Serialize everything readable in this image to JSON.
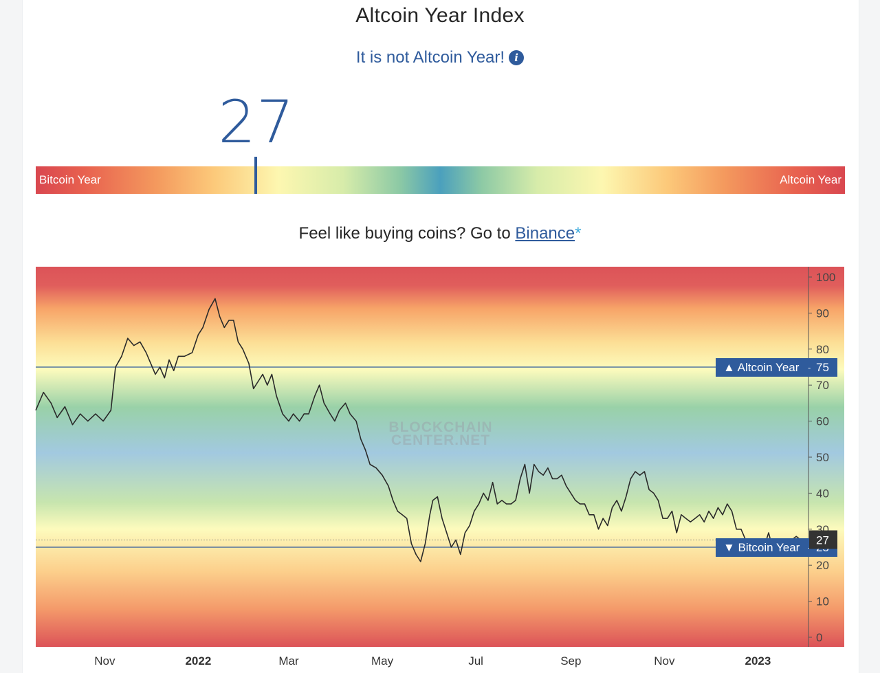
{
  "header": {
    "title": "Altcoin Year Index",
    "status_text": "It is not Altcoin Year!",
    "info_icon": "info-icon",
    "current_value": "27"
  },
  "scale": {
    "left_label": "Bitcoin Year",
    "right_label": "Altcoin Year",
    "value": 27
  },
  "promo": {
    "prefix": "Feel like buying coins? Go to ",
    "link_text": "Binance",
    "suffix": "*"
  },
  "colors": {
    "accent": "#2f5b9c",
    "line": "#2a2a2a",
    "red": "#dc5358",
    "orange": "#f7a468",
    "yellow": "#fdfbbd",
    "green": "#99d1a8",
    "blue": "#a2c9e0"
  },
  "chart_data": {
    "type": "line",
    "title": "",
    "ylim": [
      0,
      100
    ],
    "yticks": [
      0,
      10,
      20,
      30,
      40,
      50,
      60,
      70,
      80,
      90,
      100
    ],
    "x_labels": [
      {
        "date": "2021-11-01",
        "label": "Nov",
        "bold": false
      },
      {
        "date": "2022-01-01",
        "label": "2022",
        "bold": true
      },
      {
        "date": "2022-03-01",
        "label": "Mar",
        "bold": false
      },
      {
        "date": "2022-05-01",
        "label": "May",
        "bold": false
      },
      {
        "date": "2022-07-01",
        "label": "Jul",
        "bold": false
      },
      {
        "date": "2022-09-01",
        "label": "Sep",
        "bold": false
      },
      {
        "date": "2022-11-01",
        "label": "Nov",
        "bold": false
      },
      {
        "date": "2023-01-01",
        "label": "2023",
        "bold": true
      }
    ],
    "x_range": [
      "2021-09-17",
      "2023-02-03"
    ],
    "thresholds": [
      {
        "label": "▲ Altcoin Year",
        "value": 75
      },
      {
        "label": "▼ Bitcoin Year",
        "value": 25
      }
    ],
    "current": {
      "label": "27",
      "value": 27
    },
    "watermark": [
      "BLOCKCHAIN",
      "CENTER.NET"
    ],
    "series": [
      {
        "points": [
          [
            "2021-09-17",
            63
          ],
          [
            "2021-09-22",
            68
          ],
          [
            "2021-09-27",
            65
          ],
          [
            "2021-10-01",
            61
          ],
          [
            "2021-10-06",
            64
          ],
          [
            "2021-10-11",
            59
          ],
          [
            "2021-10-16",
            62
          ],
          [
            "2021-10-21",
            60
          ],
          [
            "2021-10-26",
            62
          ],
          [
            "2021-10-31",
            60
          ],
          [
            "2021-11-05",
            63
          ],
          [
            "2021-11-08",
            75
          ],
          [
            "2021-11-12",
            78
          ],
          [
            "2021-11-16",
            83
          ],
          [
            "2021-11-20",
            81
          ],
          [
            "2021-11-24",
            82
          ],
          [
            "2021-11-28",
            79
          ],
          [
            "2021-12-01",
            76
          ],
          [
            "2021-12-04",
            73
          ],
          [
            "2021-12-07",
            75
          ],
          [
            "2021-12-10",
            72
          ],
          [
            "2021-12-13",
            77
          ],
          [
            "2021-12-16",
            74
          ],
          [
            "2021-12-19",
            78
          ],
          [
            "2021-12-23",
            78
          ],
          [
            "2021-12-28",
            79
          ],
          [
            "2022-01-01",
            84
          ],
          [
            "2022-01-04",
            86
          ],
          [
            "2022-01-08",
            91
          ],
          [
            "2022-01-12",
            94
          ],
          [
            "2022-01-15",
            89
          ],
          [
            "2022-01-18",
            86
          ],
          [
            "2022-01-21",
            88
          ],
          [
            "2022-01-24",
            88
          ],
          [
            "2022-01-27",
            82
          ],
          [
            "2022-01-30",
            80
          ],
          [
            "2022-02-03",
            76
          ],
          [
            "2022-02-06",
            69
          ],
          [
            "2022-02-09",
            71
          ],
          [
            "2022-02-12",
            73
          ],
          [
            "2022-02-15",
            70
          ],
          [
            "2022-02-18",
            73
          ],
          [
            "2022-02-21",
            67
          ],
          [
            "2022-02-25",
            62
          ],
          [
            "2022-03-01",
            60
          ],
          [
            "2022-03-04",
            62
          ],
          [
            "2022-03-08",
            60
          ],
          [
            "2022-03-11",
            62
          ],
          [
            "2022-03-14",
            62
          ],
          [
            "2022-03-18",
            67
          ],
          [
            "2022-03-21",
            70
          ],
          [
            "2022-03-24",
            65
          ],
          [
            "2022-03-28",
            62
          ],
          [
            "2022-03-31",
            60
          ],
          [
            "2022-04-03",
            63
          ],
          [
            "2022-04-07",
            65
          ],
          [
            "2022-04-10",
            62
          ],
          [
            "2022-04-14",
            60
          ],
          [
            "2022-04-17",
            55
          ],
          [
            "2022-04-20",
            52
          ],
          [
            "2022-04-23",
            48
          ],
          [
            "2022-04-27",
            47
          ],
          [
            "2022-05-01",
            45
          ],
          [
            "2022-05-05",
            42
          ],
          [
            "2022-05-08",
            38
          ],
          [
            "2022-05-11",
            35
          ],
          [
            "2022-05-14",
            34
          ],
          [
            "2022-05-17",
            33
          ],
          [
            "2022-05-20",
            26
          ],
          [
            "2022-05-23",
            23
          ],
          [
            "2022-05-26",
            21
          ],
          [
            "2022-05-29",
            26
          ],
          [
            "2022-06-01",
            34
          ],
          [
            "2022-06-03",
            38
          ],
          [
            "2022-06-06",
            39
          ],
          [
            "2022-06-09",
            33
          ],
          [
            "2022-06-12",
            29
          ],
          [
            "2022-06-15",
            25
          ],
          [
            "2022-06-18",
            27
          ],
          [
            "2022-06-21",
            23
          ],
          [
            "2022-06-24",
            29
          ],
          [
            "2022-06-27",
            31
          ],
          [
            "2022-06-30",
            35
          ],
          [
            "2022-07-03",
            37
          ],
          [
            "2022-07-06",
            40
          ],
          [
            "2022-07-09",
            38
          ],
          [
            "2022-07-12",
            43
          ],
          [
            "2022-07-15",
            37
          ],
          [
            "2022-07-18",
            38
          ],
          [
            "2022-07-21",
            37
          ],
          [
            "2022-07-24",
            37
          ],
          [
            "2022-07-27",
            38
          ],
          [
            "2022-07-30",
            44
          ],
          [
            "2022-08-02",
            48
          ],
          [
            "2022-08-05",
            40
          ],
          [
            "2022-08-08",
            48
          ],
          [
            "2022-08-11",
            46
          ],
          [
            "2022-08-14",
            45
          ],
          [
            "2022-08-17",
            47
          ],
          [
            "2022-08-20",
            44
          ],
          [
            "2022-08-23",
            44
          ],
          [
            "2022-08-26",
            45
          ],
          [
            "2022-08-29",
            42
          ],
          [
            "2022-09-01",
            40
          ],
          [
            "2022-09-04",
            38
          ],
          [
            "2022-09-07",
            37
          ],
          [
            "2022-09-10",
            37
          ],
          [
            "2022-09-13",
            34
          ],
          [
            "2022-09-16",
            34
          ],
          [
            "2022-09-19",
            30
          ],
          [
            "2022-09-22",
            33
          ],
          [
            "2022-09-25",
            31
          ],
          [
            "2022-09-28",
            36
          ],
          [
            "2022-10-01",
            38
          ],
          [
            "2022-10-04",
            35
          ],
          [
            "2022-10-07",
            39
          ],
          [
            "2022-10-10",
            44
          ],
          [
            "2022-10-13",
            46
          ],
          [
            "2022-10-16",
            45
          ],
          [
            "2022-10-19",
            46
          ],
          [
            "2022-10-22",
            41
          ],
          [
            "2022-10-25",
            40
          ],
          [
            "2022-10-28",
            38
          ],
          [
            "2022-10-31",
            33
          ],
          [
            "2022-11-03",
            33
          ],
          [
            "2022-11-06",
            35
          ],
          [
            "2022-11-09",
            29
          ],
          [
            "2022-11-12",
            34
          ],
          [
            "2022-11-15",
            33
          ],
          [
            "2022-11-18",
            32
          ],
          [
            "2022-11-21",
            33
          ],
          [
            "2022-11-24",
            34
          ],
          [
            "2022-11-27",
            32
          ],
          [
            "2022-11-30",
            35
          ],
          [
            "2022-12-03",
            33
          ],
          [
            "2022-12-06",
            36
          ],
          [
            "2022-12-09",
            34
          ],
          [
            "2022-12-12",
            37
          ],
          [
            "2022-12-15",
            35
          ],
          [
            "2022-12-18",
            30
          ],
          [
            "2022-12-21",
            30
          ],
          [
            "2022-12-24",
            27
          ],
          [
            "2022-12-27",
            24
          ],
          [
            "2022-12-30",
            25
          ],
          [
            "2023-01-02",
            24
          ],
          [
            "2023-01-05",
            25
          ],
          [
            "2023-01-08",
            29
          ],
          [
            "2023-01-11",
            24
          ],
          [
            "2023-01-14",
            25
          ],
          [
            "2023-01-17",
            24
          ],
          [
            "2023-01-20",
            25
          ],
          [
            "2023-01-23",
            27
          ],
          [
            "2023-01-26",
            28
          ],
          [
            "2023-01-29",
            27
          ],
          [
            "2023-02-01",
            27
          ]
        ]
      }
    ]
  }
}
